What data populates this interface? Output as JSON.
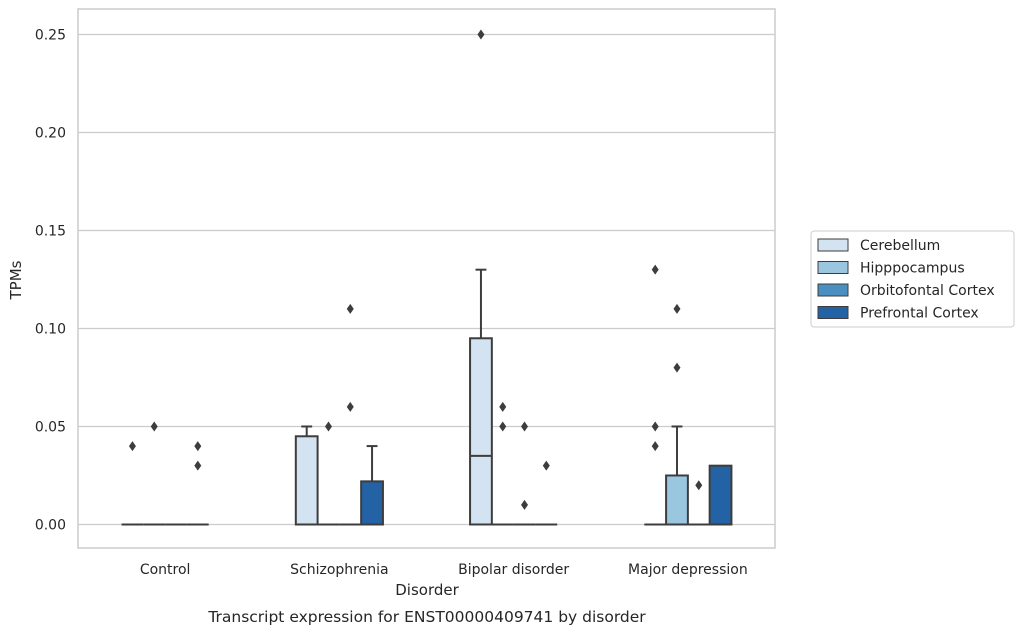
{
  "chart_data": {
    "type": "box",
    "caption": "Transcript expression for ENST00000409741 by disorder",
    "xlabel": "Disorder",
    "ylabel": "TPMs",
    "ylim": [
      -0.012,
      0.263
    ],
    "yticks": [
      0.0,
      0.05,
      0.1,
      0.15,
      0.2,
      0.25
    ],
    "ytick_labels": [
      "0.00",
      "0.05",
      "0.10",
      "0.15",
      "0.20",
      "0.25"
    ],
    "grid": true,
    "legend_position": "right",
    "categories": [
      "Control",
      "Schizophrenia",
      "Bipolar disorder",
      "Major depression"
    ],
    "series": [
      {
        "name": "Cerebellum",
        "color": "#d4e3f1",
        "boxes": [
          {
            "q1": 0.0,
            "median": 0.0,
            "q3": 0.0,
            "whisker_low": 0.0,
            "whisker_high": 0.0,
            "outliers": [
              0.04
            ]
          },
          {
            "q1": 0.0,
            "median": 0.0,
            "q3": 0.045,
            "whisker_low": 0.0,
            "whisker_high": 0.05,
            "outliers": []
          },
          {
            "q1": 0.0,
            "median": 0.035,
            "q3": 0.095,
            "whisker_low": 0.0,
            "whisker_high": 0.13,
            "outliers": [
              0.25
            ]
          },
          {
            "q1": 0.0,
            "median": 0.0,
            "q3": 0.0,
            "whisker_low": 0.0,
            "whisker_high": 0.0,
            "outliers": [
              0.13,
              0.05,
              0.04
            ]
          }
        ]
      },
      {
        "name": "Hipppocampus",
        "color": "#9ac6e0",
        "boxes": [
          {
            "q1": 0.0,
            "median": 0.0,
            "q3": 0.0,
            "whisker_low": 0.0,
            "whisker_high": 0.0,
            "outliers": [
              0.05
            ]
          },
          {
            "q1": 0.0,
            "median": 0.0,
            "q3": 0.0,
            "whisker_low": 0.0,
            "whisker_high": 0.0,
            "outliers": [
              0.05
            ]
          },
          {
            "q1": 0.0,
            "median": 0.0,
            "q3": 0.0,
            "whisker_low": 0.0,
            "whisker_high": 0.0,
            "outliers": [
              0.06,
              0.05
            ]
          },
          {
            "q1": 0.0,
            "median": 0.0,
            "q3": 0.025,
            "whisker_low": 0.0,
            "whisker_high": 0.05,
            "outliers": [
              0.11,
              0.08
            ]
          }
        ]
      },
      {
        "name": "Orbitofontal Cortex",
        "color": "#4b8fc1",
        "boxes": [
          {
            "q1": 0.0,
            "median": 0.0,
            "q3": 0.0,
            "whisker_low": 0.0,
            "whisker_high": 0.0,
            "outliers": []
          },
          {
            "q1": 0.0,
            "median": 0.0,
            "q3": 0.0,
            "whisker_low": 0.0,
            "whisker_high": 0.0,
            "outliers": [
              0.11,
              0.06
            ]
          },
          {
            "q1": 0.0,
            "median": 0.0,
            "q3": 0.0,
            "whisker_low": 0.0,
            "whisker_high": 0.0,
            "outliers": [
              0.05,
              0.01
            ]
          },
          {
            "q1": 0.0,
            "median": 0.0,
            "q3": 0.0,
            "whisker_low": 0.0,
            "whisker_high": 0.0,
            "outliers": [
              0.02
            ]
          }
        ]
      },
      {
        "name": "Prefrontal Cortex",
        "color": "#2462a6",
        "boxes": [
          {
            "q1": 0.0,
            "median": 0.0,
            "q3": 0.0,
            "whisker_low": 0.0,
            "whisker_high": 0.0,
            "outliers": [
              0.04,
              0.03
            ]
          },
          {
            "q1": 0.0,
            "median": 0.0,
            "q3": 0.022,
            "whisker_low": 0.0,
            "whisker_high": 0.04,
            "outliers": []
          },
          {
            "q1": 0.0,
            "median": 0.0,
            "q3": 0.0,
            "whisker_low": 0.0,
            "whisker_high": 0.0,
            "outliers": [
              0.03
            ]
          },
          {
            "q1": 0.0,
            "median": 0.0,
            "q3": 0.03,
            "whisker_low": 0.0,
            "whisker_high": 0.03,
            "outliers": []
          }
        ]
      }
    ]
  }
}
